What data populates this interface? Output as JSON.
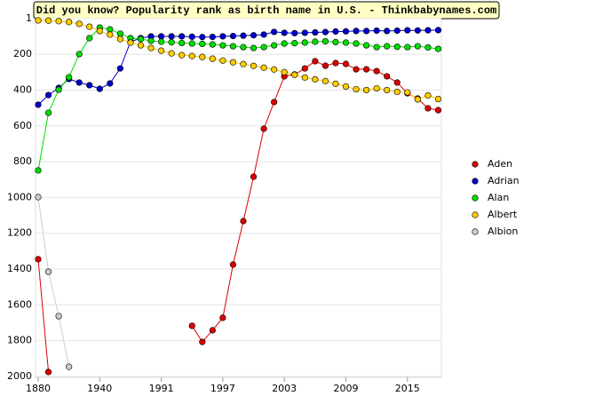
{
  "chart_data": {
    "type": "line",
    "title": "Did you know? Popularity rank as birth name in U.S. - Thinkbabynames.com",
    "categories": [
      "1880",
      null,
      null,
      null,
      null,
      null,
      "1940",
      null,
      null,
      null,
      null,
      null,
      "1991",
      null,
      null,
      null,
      null,
      null,
      "1997",
      null,
      null,
      null,
      null,
      null,
      "2003",
      null,
      null,
      null,
      null,
      null,
      "2009",
      null,
      null,
      null,
      null,
      null,
      "2015",
      null,
      null,
      null
    ],
    "ylim": [
      1,
      2000
    ],
    "yticks": [
      1,
      200,
      400,
      600,
      800,
      1000,
      1200,
      1400,
      1600,
      1800,
      2000
    ],
    "inverted": true,
    "grid": true,
    "legend": "right",
    "series": [
      {
        "name": "Aden",
        "color": "#dd0000",
        "values": [
          1345,
          1975,
          null,
          null,
          null,
          null,
          null,
          null,
          null,
          null,
          null,
          null,
          null,
          null,
          null,
          1717,
          1807,
          1742,
          1672,
          1375,
          1132,
          884,
          616,
          467,
          323,
          313,
          279,
          239,
          264,
          249,
          254,
          284,
          284,
          294,
          323,
          358,
          418,
          447,
          502,
          512
        ]
      },
      {
        "name": "Adrian",
        "color": "#0000cc",
        "values": [
          482,
          428,
          388,
          338,
          358,
          373,
          393,
          363,
          279,
          130,
          110,
          100,
          100,
          100,
          100,
          102,
          104,
          103,
          100,
          98,
          96,
          94,
          90,
          75,
          80,
          82,
          80,
          78,
          76,
          73,
          72,
          70,
          70,
          68,
          70,
          68,
          66,
          67,
          66,
          65
        ]
      },
      {
        "name": "Alan",
        "color": "#00dd00",
        "values": [
          849,
          527,
          398,
          328,
          199,
          110,
          51,
          61,
          85,
          110,
          115,
          125,
          130,
          133,
          137,
          140,
          142,
          145,
          150,
          155,
          160,
          165,
          160,
          150,
          140,
          138,
          135,
          130,
          128,
          132,
          135,
          140,
          150,
          160,
          155,
          158,
          160,
          155,
          162,
          170
        ]
      },
      {
        "name": "Albert",
        "color": "#ffcc00",
        "values": [
          11,
          12,
          15,
          20,
          30,
          46,
          70,
          90,
          115,
          135,
          150,
          165,
          180,
          195,
          205,
          210,
          215,
          225,
          235,
          245,
          255,
          265,
          275,
          285,
          300,
          315,
          330,
          340,
          350,
          365,
          380,
          395,
          400,
          390,
          400,
          410,
          413,
          452,
          430,
          450
        ]
      },
      {
        "name": "Albion",
        "color": "#cccccc",
        "values": [
          998,
          1415,
          1663,
          1946,
          null,
          null,
          null,
          null,
          null,
          null,
          null,
          null,
          null,
          null,
          null,
          null,
          null,
          null,
          null,
          null,
          null,
          null,
          null,
          null,
          null,
          null,
          null,
          null,
          null,
          null,
          null,
          null,
          null,
          null,
          null,
          null,
          null,
          null,
          null,
          null
        ]
      }
    ]
  }
}
